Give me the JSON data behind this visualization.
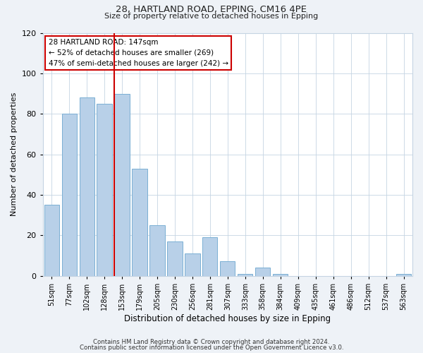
{
  "title_line1": "28, HARTLAND ROAD, EPPING, CM16 4PE",
  "title_line2": "Size of property relative to detached houses in Epping",
  "xlabel": "Distribution of detached houses by size in Epping",
  "ylabel": "Number of detached properties",
  "categories": [
    "51sqm",
    "77sqm",
    "102sqm",
    "128sqm",
    "153sqm",
    "179sqm",
    "205sqm",
    "230sqm",
    "256sqm",
    "281sqm",
    "307sqm",
    "333sqm",
    "358sqm",
    "384sqm",
    "409sqm",
    "435sqm",
    "461sqm",
    "486sqm",
    "512sqm",
    "537sqm",
    "563sqm"
  ],
  "values": [
    35,
    80,
    88,
    85,
    90,
    53,
    25,
    17,
    11,
    19,
    7,
    1,
    4,
    1,
    0,
    0,
    0,
    0,
    0,
    0,
    1
  ],
  "bar_color": "#b8d0e8",
  "bar_edge_color": "#7aafd4",
  "vline_color": "#cc0000",
  "annotation_line1": "28 HARTLAND ROAD: 147sqm",
  "annotation_line2": "← 52% of detached houses are smaller (269)",
  "annotation_line3": "47% of semi-detached houses are larger (242) →",
  "annotation_box_color": "#cc0000",
  "ylim": [
    0,
    120
  ],
  "yticks": [
    0,
    20,
    40,
    60,
    80,
    100,
    120
  ],
  "footer_line1": "Contains HM Land Registry data © Crown copyright and database right 2024.",
  "footer_line2": "Contains public sector information licensed under the Open Government Licence v3.0.",
  "bg_color": "#eef2f7",
  "plot_bg_color": "#ffffff",
  "grid_color": "#c5d4e3"
}
